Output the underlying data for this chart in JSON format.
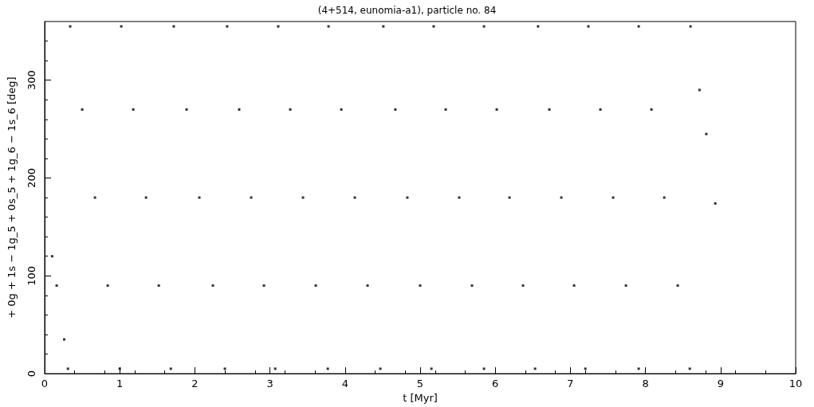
{
  "chart_data": {
    "type": "scatter",
    "title": "(4+514, eunomia-a1), particle no. 84",
    "xlabel": "t [Myr]",
    "ylabel": "+ 0g + 1s − 1g_5 + 0s_5 + 1g_6 − 1s_6 [deg]",
    "xlim": [
      0,
      10
    ],
    "xticks": [
      0,
      1,
      2,
      3,
      4,
      5,
      6,
      7,
      8,
      9,
      10
    ],
    "ylim": [
      0,
      360
    ],
    "yticks": [
      0,
      100,
      200,
      300
    ],
    "grid": false,
    "marker": "square",
    "series": [
      {
        "color": "#000000",
        "x": [
          0.1,
          0.16,
          0.26,
          0.31,
          0.34,
          0.5,
          0.67,
          0.84,
          1.0,
          1.02,
          1.18,
          1.35,
          1.52,
          1.68,
          1.72,
          1.89,
          2.06,
          2.24,
          2.4,
          2.43,
          2.59,
          2.75,
          2.92,
          3.07,
          3.11,
          3.27,
          3.44,
          3.61,
          3.77,
          3.78,
          3.95,
          4.13,
          4.3,
          4.47,
          4.51,
          4.67,
          4.83,
          5.0,
          5.15,
          5.18,
          5.34,
          5.52,
          5.69,
          5.85,
          5.85,
          6.02,
          6.19,
          6.37,
          6.53,
          6.57,
          6.72,
          6.88,
          7.05,
          7.2,
          7.24,
          7.4,
          7.57,
          7.74,
          7.91,
          7.91,
          8.08,
          8.25,
          8.43,
          8.59,
          8.6,
          8.72,
          8.81,
          8.93
        ],
        "values": [
          120,
          90,
          35,
          5,
          355,
          270,
          180,
          90,
          5,
          355,
          270,
          180,
          90,
          5,
          355,
          270,
          180,
          90,
          5,
          355,
          270,
          180,
          90,
          5,
          355,
          270,
          180,
          90,
          5,
          355,
          270,
          180,
          90,
          5,
          355,
          270,
          180,
          90,
          5,
          355,
          270,
          180,
          90,
          5,
          355,
          270,
          180,
          90,
          5,
          355,
          270,
          180,
          90,
          5,
          355,
          270,
          180,
          90,
          5,
          355,
          270,
          180,
          90,
          5,
          355,
          290,
          245,
          174
        ]
      }
    ]
  }
}
